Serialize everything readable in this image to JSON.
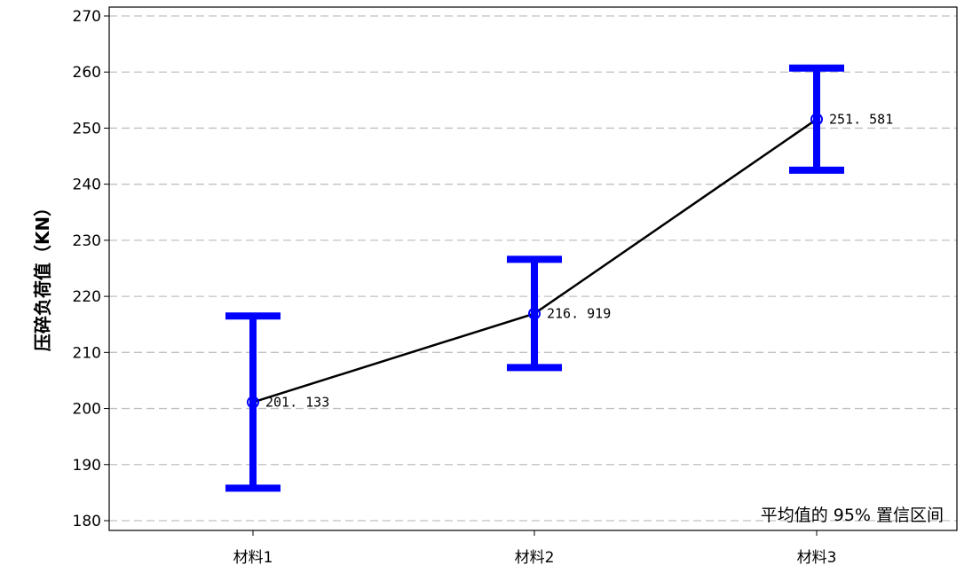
{
  "chart_data": {
    "type": "line",
    "categories": [
      "材料1",
      "材料2",
      "材料3"
    ],
    "series": [
      {
        "values": [
          201.133,
          216.919,
          251.581
        ]
      }
    ],
    "value_labels": [
      "201. 133",
      "216. 919",
      "251. 581"
    ],
    "error_bars": {
      "lower": [
        185.8,
        207.3,
        242.5
      ],
      "upper": [
        216.5,
        226.6,
        260.7
      ]
    },
    "title": "",
    "xlabel": "",
    "ylabel": "压碎负荷值（KN）",
    "ylim": [
      180,
      270
    ],
    "yticks": [
      180,
      190,
      200,
      210,
      220,
      230,
      240,
      250,
      260,
      270
    ],
    "grid": true,
    "annotation": "平均值的 95% 置信区间",
    "colors": {
      "line": "#000000",
      "error_bar": "#0000ff",
      "marker": "#0000ff",
      "grid": "#c0c0c0"
    }
  }
}
